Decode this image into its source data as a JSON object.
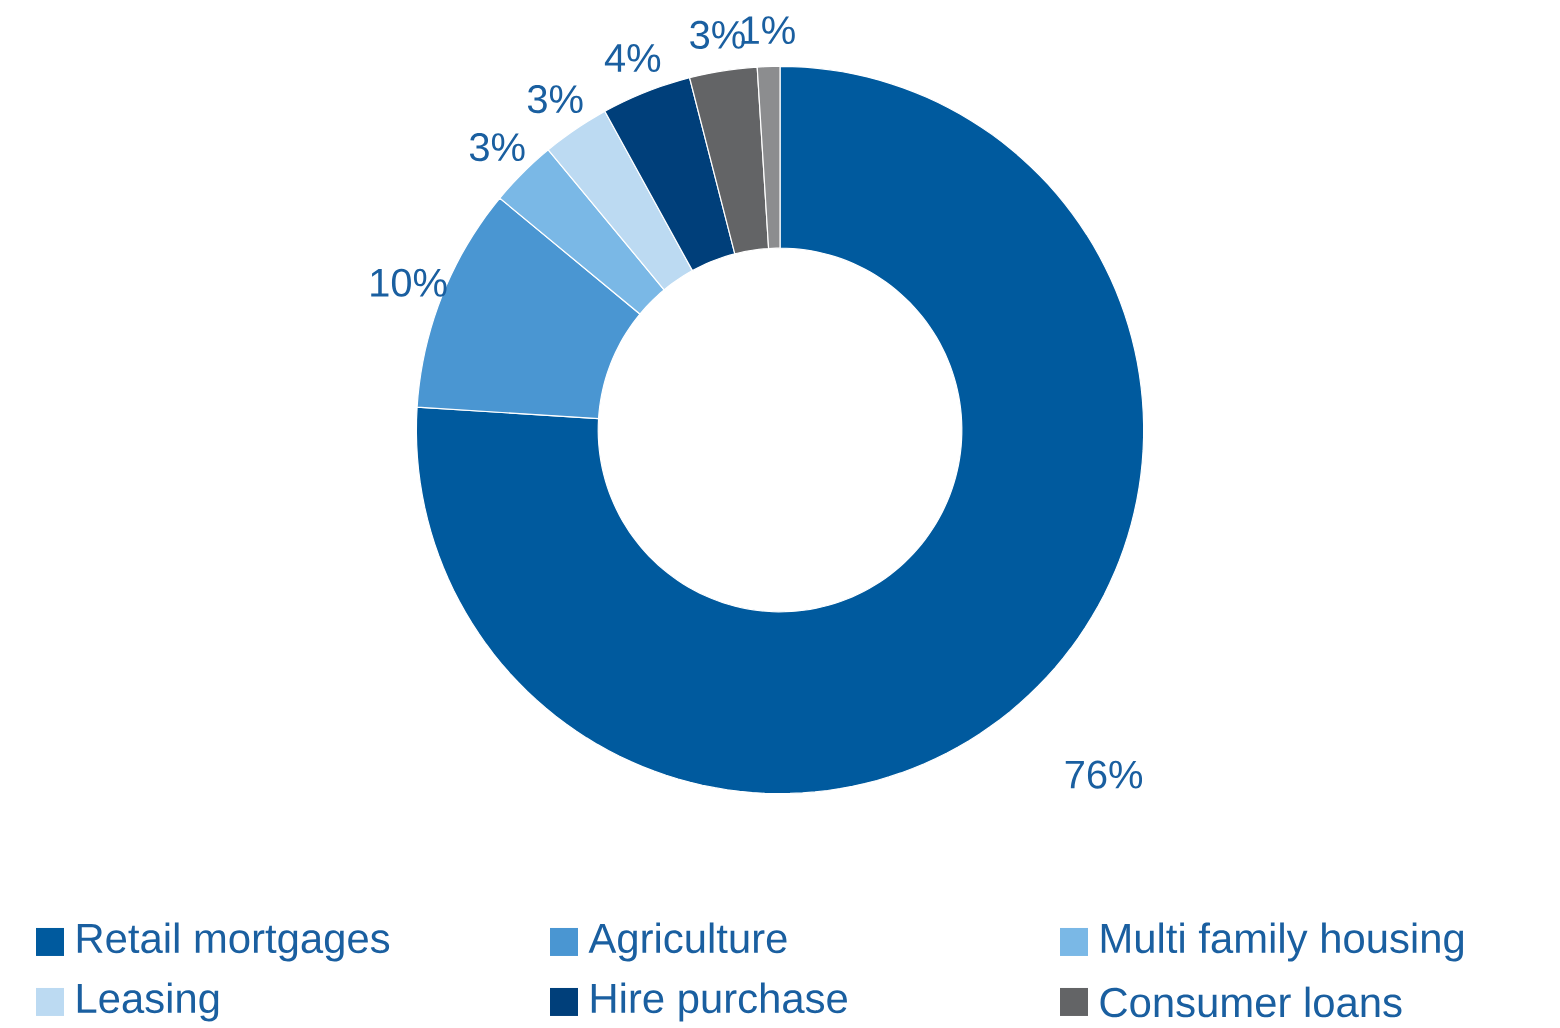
{
  "chart_data": {
    "type": "donut",
    "categories": [
      "Retail mortgages",
      "Agriculture",
      "Multi family housing",
      "Leasing",
      "Hire purchase",
      "Consumer loans",
      null
    ],
    "values": [
      76,
      10,
      3,
      3,
      4,
      3,
      1
    ],
    "value_labels": [
      "76%",
      "10%",
      "3%",
      "3%",
      "4%",
      "3%",
      "1%"
    ],
    "colors": [
      "#005a9e",
      "#4a96d2",
      "#7ab8e6",
      "#bcdaf2",
      "#003f7a",
      "#636466",
      "#8c8d8f"
    ],
    "legend": "bottom"
  }
}
